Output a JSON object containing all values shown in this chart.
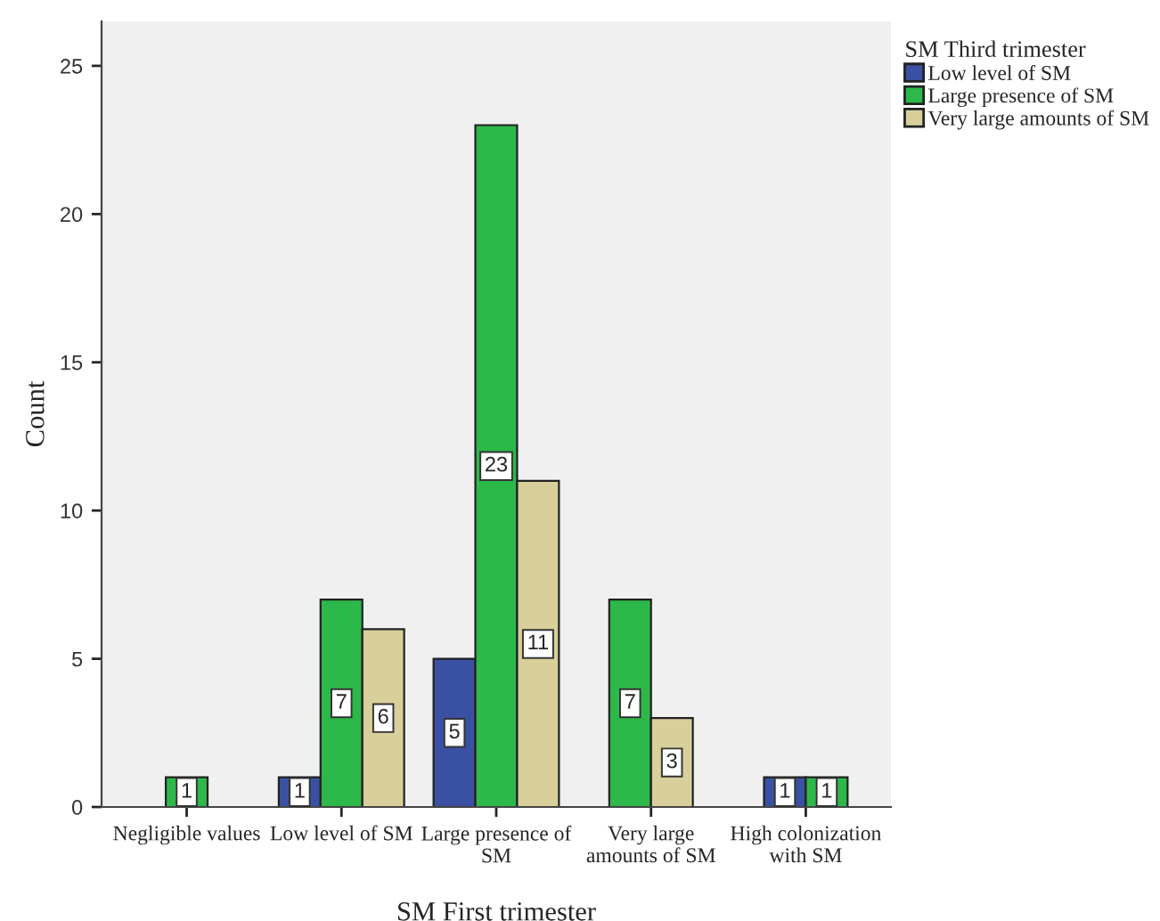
{
  "chart_data": {
    "type": "bar",
    "xlabel": "SM First trimester",
    "ylabel": "Count",
    "legend_title": "SM Third trimester",
    "categories": [
      "Negligible values",
      "Low level of SM",
      "Large presence of SM",
      "Very large amounts of SM",
      "High colonization with SM"
    ],
    "series": [
      {
        "name": "Low level of SM",
        "color": "#3a51a3",
        "values": [
          null,
          1,
          5,
          null,
          1
        ]
      },
      {
        "name": "Large presence of SM",
        "color": "#2db84a",
        "values": [
          1,
          7,
          23,
          7,
          1
        ]
      },
      {
        "name": "Very large amounts of SM",
        "color": "#d8cf9b",
        "values": [
          null,
          6,
          11,
          3,
          null
        ]
      }
    ],
    "ylim": [
      0,
      26.5
    ],
    "yticks": [
      0,
      5,
      10,
      15,
      20,
      25
    ],
    "data_labels": true,
    "legend": "top right",
    "grid": false
  }
}
